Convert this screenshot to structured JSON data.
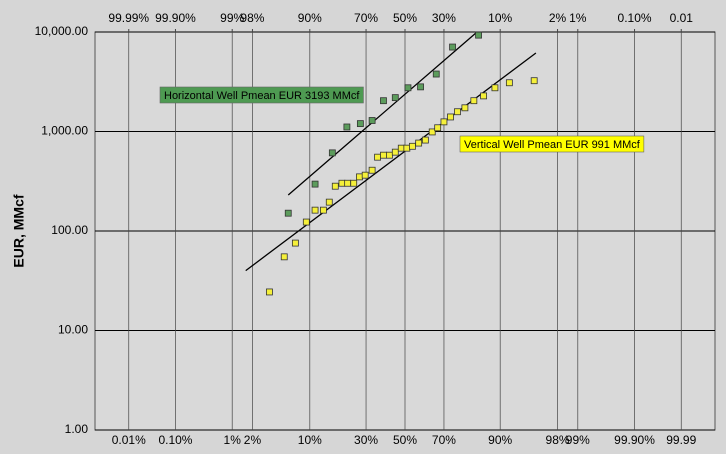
{
  "chart_data": {
    "type": "scatter",
    "xscale": "probability",
    "yscale": "log",
    "ylabel": "EUR, MMcf",
    "xlim": [
      0.0015,
      99.9985
    ],
    "x2lim": [
      99.9985,
      0.0015
    ],
    "ylim": [
      1,
      10000
    ],
    "grid": true,
    "xticks": [
      {
        "value": 0.01,
        "label": "0.01%"
      },
      {
        "value": 0.1,
        "label": "0.10%"
      },
      {
        "value": 1,
        "label": "1%"
      },
      {
        "value": 2,
        "label": "2%"
      },
      {
        "value": 10,
        "label": "10%"
      },
      {
        "value": 30,
        "label": "30%"
      },
      {
        "value": 50,
        "label": "50%"
      },
      {
        "value": 70,
        "label": "70%"
      },
      {
        "value": 90,
        "label": "90%"
      },
      {
        "value": 98,
        "label": "98%"
      },
      {
        "value": 99,
        "label": "99%"
      },
      {
        "value": 99.9,
        "label": "99.90%"
      },
      {
        "value": 99.99,
        "label": "99.99"
      }
    ],
    "x2ticks": [
      {
        "value": 99.99,
        "label": "99.99%"
      },
      {
        "value": 99.9,
        "label": "99.90%"
      },
      {
        "value": 99,
        "label": "99%"
      },
      {
        "value": 98,
        "label": "98%"
      },
      {
        "value": 90,
        "label": "90%"
      },
      {
        "value": 70,
        "label": "70%"
      },
      {
        "value": 50,
        "label": "50%"
      },
      {
        "value": 30,
        "label": "30%"
      },
      {
        "value": 10,
        "label": "10%"
      },
      {
        "value": 2,
        "label": "2%"
      },
      {
        "value": 1,
        "label": "1%"
      },
      {
        "value": 0.1,
        "label": "0.10%"
      },
      {
        "value": 0.01,
        "label": "0.01"
      }
    ],
    "yticks": [
      {
        "value": 1,
        "label": "1.00"
      },
      {
        "value": 10,
        "label": "10.00"
      },
      {
        "value": 100,
        "label": "100.00"
      },
      {
        "value": 1000,
        "label": "1,000.00"
      },
      {
        "value": 10000,
        "label": "10,000.00"
      }
    ],
    "series": [
      {
        "color": "#5c9c5c",
        "x": [
          5.8,
          11.3,
          16.4,
          21.7,
          27.4,
          32.9,
          38.6,
          44.8,
          51.6,
          58.3,
          66.3,
          73.9,
          83.9
        ],
        "values": [
          151,
          296,
          610,
          1110,
          1200,
          1290,
          2040,
          2190,
          2750,
          2810,
          3780,
          7060,
          9300
        ]
      },
      {
        "color": "#f5f03a",
        "x": [
          3.4,
          5.2,
          7.0,
          9.2,
          11.3,
          13.6,
          15.4,
          17.4,
          19.8,
          22,
          24.5,
          27,
          29.6,
          32.9,
          35.6,
          38.6,
          41.7,
          44.8,
          48,
          51,
          54,
          57.3,
          60.8,
          64.3,
          67,
          70,
          73,
          76,
          79,
          82.3,
          85.5,
          88.7,
          92,
          95.9
        ],
        "values": [
          24.4,
          55,
          75.6,
          123,
          162,
          162,
          195,
          282,
          302,
          302,
          302,
          350,
          364,
          408,
          552,
          578,
          578,
          620,
          680,
          680,
          710,
          765,
          820,
          990,
          1090,
          1250,
          1400,
          1580,
          1730,
          2040,
          2280,
          2750,
          3090,
          3240
        ]
      }
    ],
    "fits": [
      {
        "x": [
          5.8,
          83.4
        ],
        "values": [
          230,
          10000
        ]
      },
      {
        "x": [
          1.6,
          96.1
        ],
        "values": [
          40,
          6150
        ]
      }
    ],
    "annotations": [
      {
        "text": "Horizontal Well Pmean EUR 3193 MMcf",
        "color": "#4e9a52",
        "text_color": "#ffffff"
      },
      {
        "text": "Vertical Well Pmean EUR 991 MMcf",
        "color": "#ffff00",
        "text_color": "#000000"
      }
    ]
  }
}
